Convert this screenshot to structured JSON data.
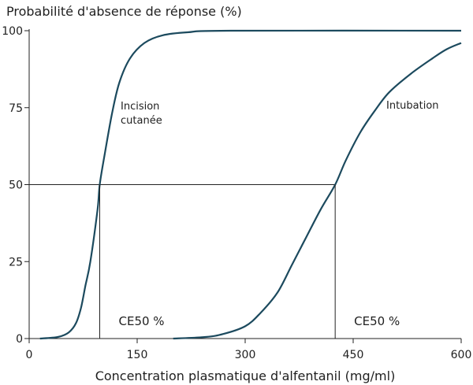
{
  "chart_data": {
    "type": "line",
    "ylabel": "Probabilité d'absence de réponse (%)",
    "xlabel": "Concentration plasmatique d'alfentanil (mg/ml)",
    "xlim": [
      0,
      600
    ],
    "ylim": [
      0,
      100
    ],
    "x_ticks": [
      "0",
      "150",
      "300",
      "450",
      "600"
    ],
    "y_ticks": [
      "0",
      "25",
      "50",
      "75",
      "100"
    ],
    "grid": false,
    "legend": "none",
    "line_color": "#1c4a5e",
    "series": [
      {
        "name": "Incision cutanée",
        "label_lines": [
          "Incision",
          "cutanée"
        ],
        "points": [
          [
            15,
            0
          ],
          [
            40,
            0.5
          ],
          [
            55,
            2
          ],
          [
            65,
            5
          ],
          [
            72,
            10
          ],
          [
            78,
            17
          ],
          [
            85,
            25
          ],
          [
            95,
            42
          ],
          [
            98,
            50
          ],
          [
            105,
            60
          ],
          [
            115,
            73
          ],
          [
            125,
            83
          ],
          [
            140,
            91
          ],
          [
            160,
            96
          ],
          [
            185,
            98.5
          ],
          [
            220,
            99.5
          ],
          [
            280,
            100
          ],
          [
            600,
            100
          ]
        ],
        "ec50_value": 98,
        "ec50_label": "CE50 %"
      },
      {
        "name": "Intubation",
        "label_lines": [
          "Intubation"
        ],
        "points": [
          [
            200,
            0
          ],
          [
            245,
            0.5
          ],
          [
            270,
            1.5
          ],
          [
            300,
            4
          ],
          [
            320,
            8
          ],
          [
            345,
            15
          ],
          [
            365,
            24
          ],
          [
            385,
            33
          ],
          [
            405,
            42
          ],
          [
            425,
            50
          ],
          [
            440,
            58
          ],
          [
            460,
            67
          ],
          [
            480,
            74
          ],
          [
            500,
            80
          ],
          [
            530,
            86
          ],
          [
            560,
            91
          ],
          [
            580,
            94
          ],
          [
            600,
            96
          ]
        ],
        "ec50_value": 425,
        "ec50_label": "CE50 %"
      }
    ],
    "reference_line_y": 50
  }
}
